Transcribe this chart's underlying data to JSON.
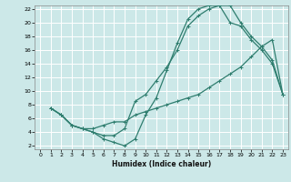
{
  "title": "",
  "xlabel": "Humidex (Indice chaleur)",
  "ylabel": "",
  "background_color": "#cce8e8",
  "grid_color": "#ffffff",
  "line_color": "#2e7d6e",
  "xlim": [
    -0.5,
    23.5
  ],
  "ylim": [
    1.5,
    22.5
  ],
  "xticks": [
    0,
    1,
    2,
    3,
    4,
    5,
    6,
    7,
    8,
    9,
    10,
    11,
    12,
    13,
    14,
    15,
    16,
    17,
    18,
    19,
    20,
    21,
    22,
    23
  ],
  "yticks": [
    2,
    4,
    6,
    8,
    10,
    12,
    14,
    16,
    18,
    20,
    22
  ],
  "curve1_x": [
    1,
    2,
    3,
    4,
    5,
    6,
    7,
    8,
    9,
    10,
    11,
    12,
    13,
    14,
    15,
    16,
    17,
    18,
    19,
    20,
    21,
    22,
    23
  ],
  "curve1_y": [
    7.5,
    6.5,
    5.0,
    4.5,
    4.0,
    3.0,
    2.5,
    2.0,
    3.0,
    6.5,
    9.0,
    13.0,
    17.0,
    20.5,
    22.0,
    22.5,
    22.5,
    22.5,
    20.0,
    18.0,
    16.5,
    14.5,
    9.5
  ],
  "curve2_x": [
    1,
    2,
    3,
    4,
    5,
    6,
    7,
    8,
    9,
    10,
    11,
    12,
    13,
    14,
    15,
    16,
    17,
    18,
    19,
    20,
    21,
    22,
    23
  ],
  "curve2_y": [
    7.5,
    6.5,
    5.0,
    4.5,
    4.0,
    3.5,
    3.5,
    4.5,
    8.5,
    9.5,
    11.5,
    13.5,
    16.0,
    19.5,
    21.0,
    22.0,
    22.5,
    20.0,
    19.5,
    17.5,
    16.0,
    14.0,
    9.5
  ],
  "curve3_x": [
    1,
    2,
    3,
    4,
    5,
    6,
    7,
    8,
    9,
    10,
    11,
    12,
    13,
    14,
    15,
    16,
    17,
    18,
    19,
    20,
    21,
    22,
    23
  ],
  "curve3_y": [
    7.5,
    6.5,
    5.0,
    4.5,
    4.5,
    5.0,
    5.5,
    5.5,
    6.5,
    7.0,
    7.5,
    8.0,
    8.5,
    9.0,
    9.5,
    10.5,
    11.5,
    12.5,
    13.5,
    15.0,
    16.5,
    17.5,
    9.5
  ]
}
